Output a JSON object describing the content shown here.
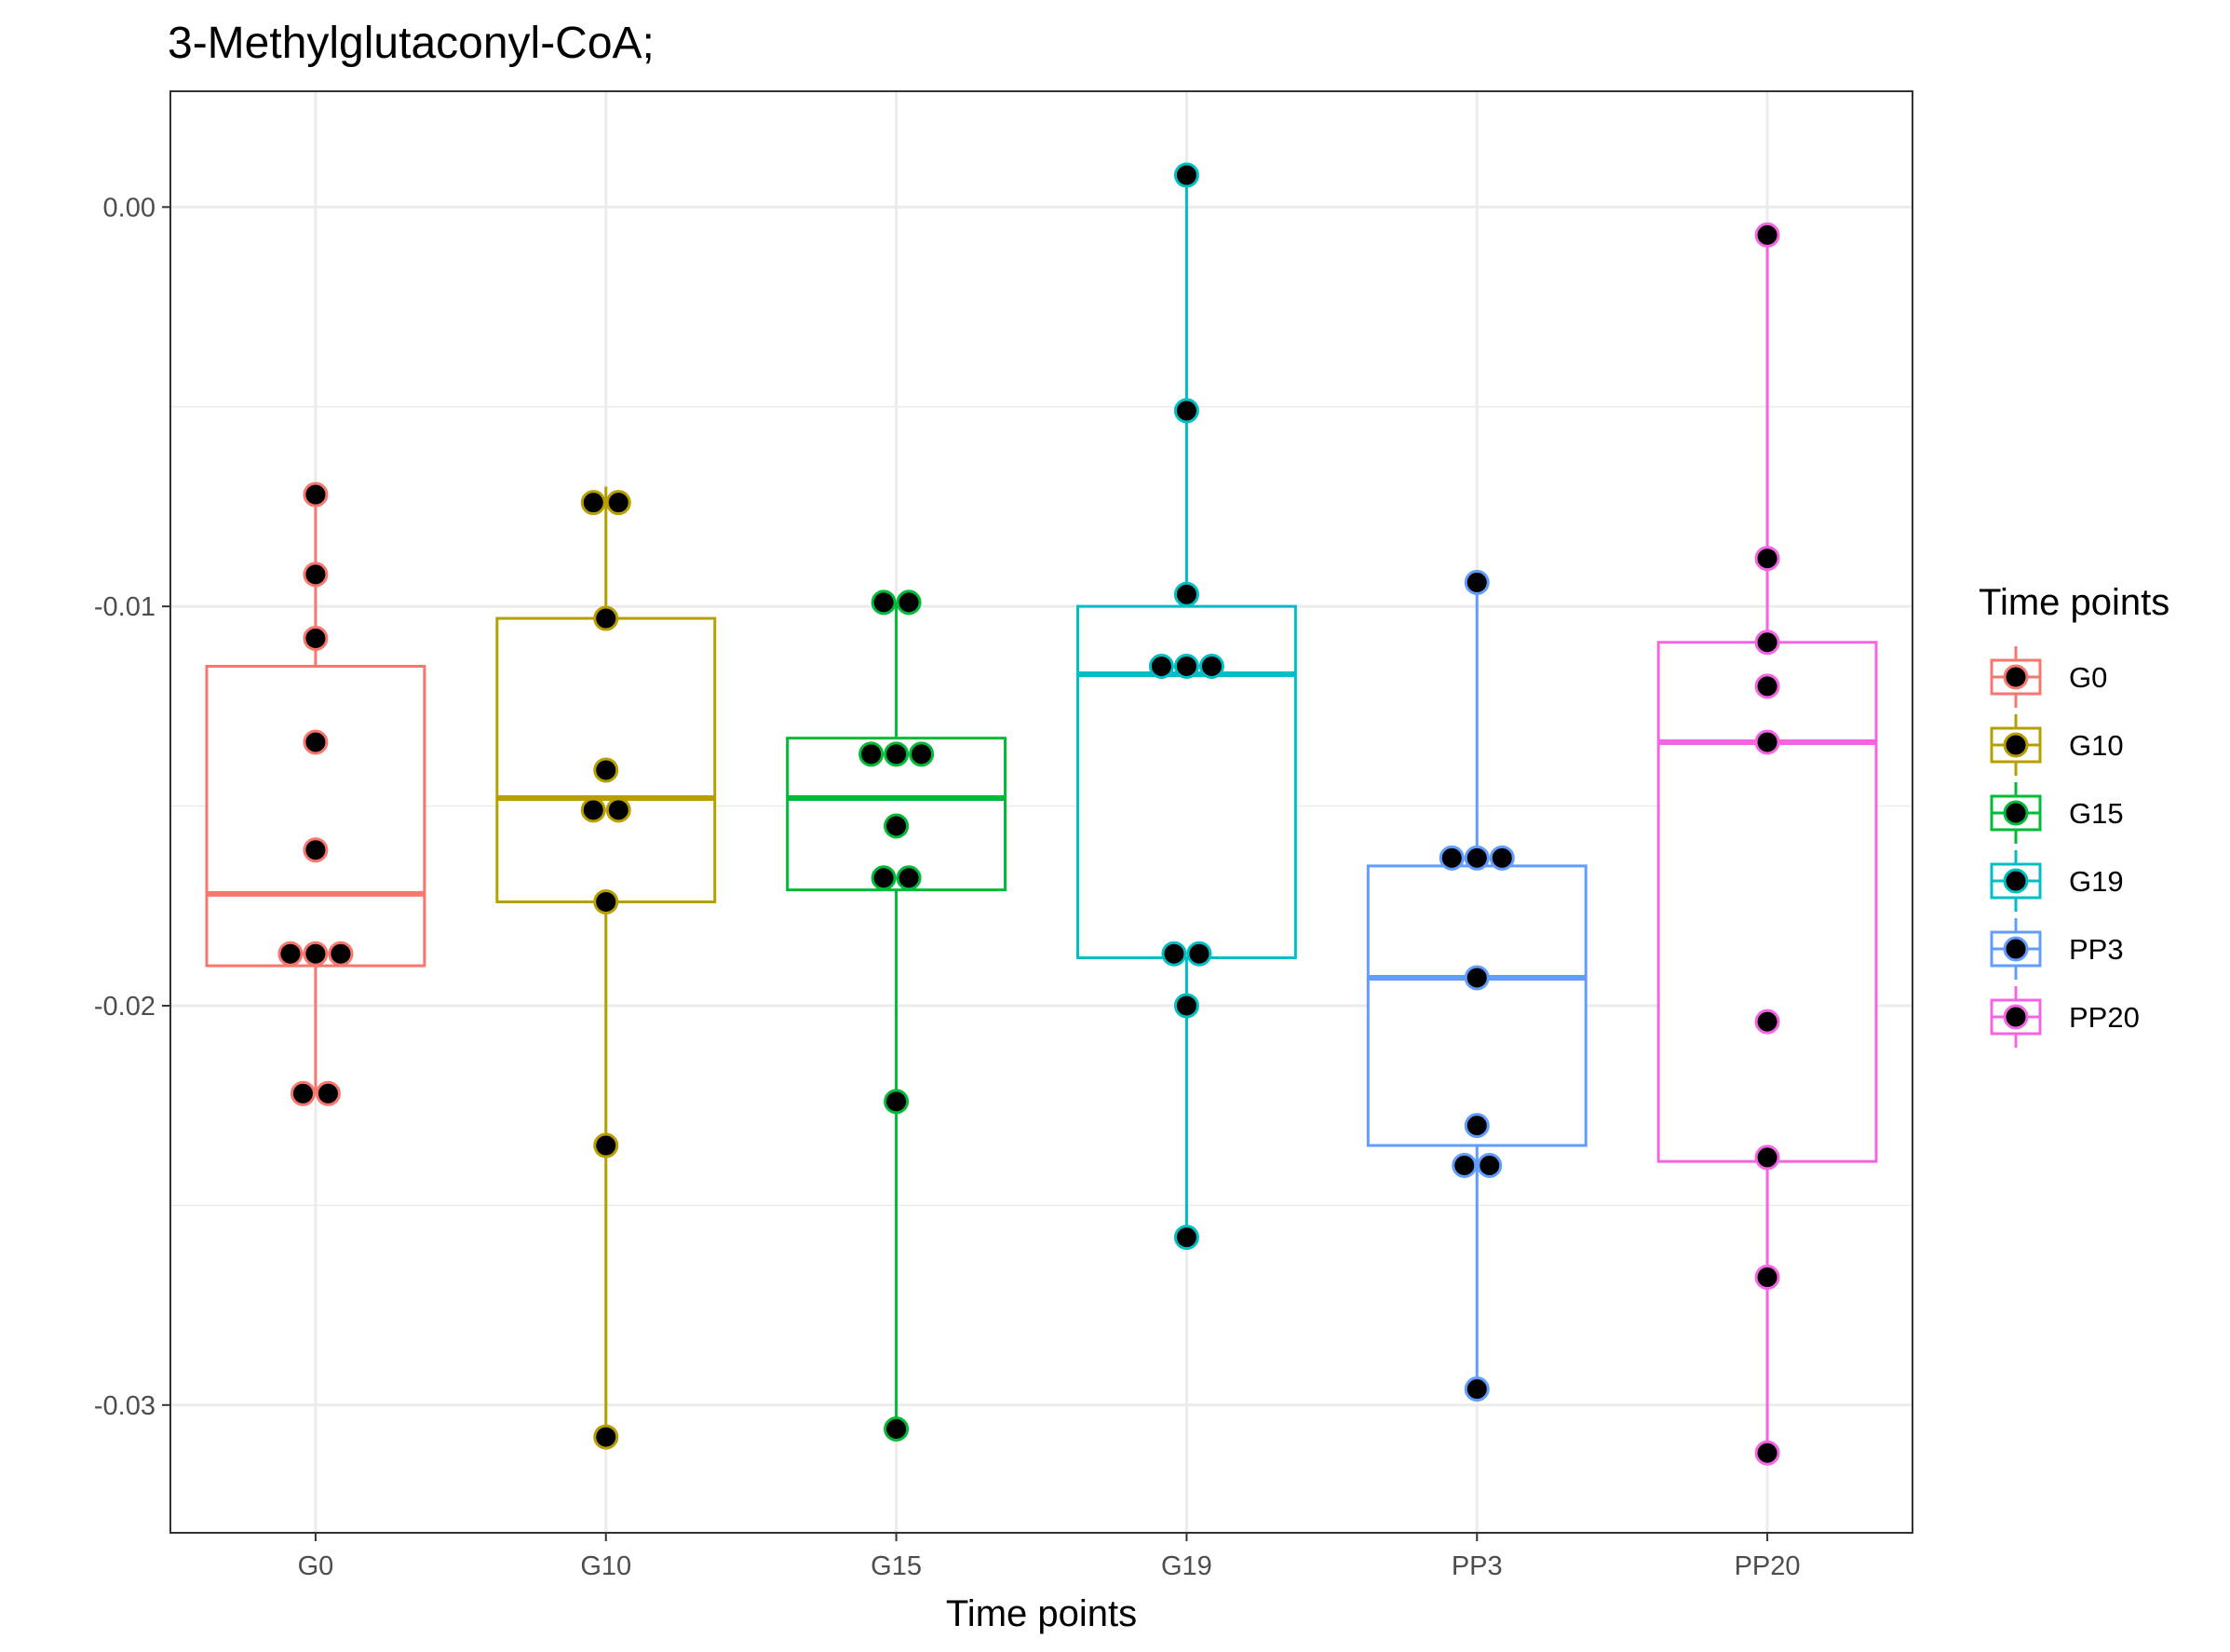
{
  "chart_data": {
    "type": "box",
    "title": "3-Methylglutaconyl-CoA;",
    "xlabel": "Time points",
    "ylabel": "",
    "ylim": [
      -0.0332,
      0.0029
    ],
    "yticks": [
      0.0,
      -0.01,
      -0.02,
      -0.03
    ],
    "ytick_labels": [
      "0.00",
      "-0.01",
      "-0.02",
      "-0.03"
    ],
    "grid": true,
    "legend": {
      "title": "Time points",
      "position": "right"
    },
    "categories": [
      "G0",
      "G10",
      "G15",
      "G19",
      "PP3",
      "PP20"
    ],
    "colors": [
      "#F8766D",
      "#B79F00",
      "#00BA38",
      "#00BFC4",
      "#619CFF",
      "#F564E3"
    ],
    "series": [
      {
        "name": "G0",
        "box": {
          "q1": -0.019,
          "median": -0.0172,
          "q3": -0.0115,
          "whisker_low": -0.0222,
          "whisker_high": -0.0072
        },
        "points": [
          -0.0072,
          -0.0092,
          -0.0108,
          -0.0134,
          -0.0161,
          -0.0187,
          -0.0187,
          -0.0187,
          -0.0222,
          -0.0222
        ]
      },
      {
        "name": "G10",
        "box": {
          "q1": -0.0174,
          "median": -0.0148,
          "q3": -0.0103,
          "whisker_low": -0.0308,
          "whisker_high": -0.007
        },
        "points": [
          -0.0074,
          -0.0074,
          -0.0103,
          -0.0141,
          -0.0151,
          -0.0151,
          -0.0174,
          -0.0235,
          -0.0308
        ]
      },
      {
        "name": "G15",
        "box": {
          "q1": -0.0171,
          "median": -0.0148,
          "q3": -0.0133,
          "whisker_low": -0.0306,
          "whisker_high": -0.0099
        },
        "points": [
          -0.0099,
          -0.0099,
          -0.0137,
          -0.0137,
          -0.0137,
          -0.0155,
          -0.0168,
          -0.0168,
          -0.0224,
          -0.0306
        ]
      },
      {
        "name": "G19",
        "box": {
          "q1": -0.0188,
          "median": -0.0117,
          "q3": -0.01,
          "whisker_low": -0.0258,
          "whisker_high": 0.0008
        },
        "points": [
          0.0008,
          -0.0051,
          -0.0097,
          -0.0115,
          -0.0115,
          -0.0115,
          -0.0187,
          -0.0187,
          -0.02,
          -0.0258
        ]
      },
      {
        "name": "PP3",
        "box": {
          "q1": -0.0235,
          "median": -0.0193,
          "q3": -0.0165,
          "whisker_low": -0.0296,
          "whisker_high": -0.0094
        },
        "points": [
          -0.0094,
          -0.0163,
          -0.0163,
          -0.0163,
          -0.0193,
          -0.023,
          -0.024,
          -0.024,
          -0.0296
        ]
      },
      {
        "name": "PP20",
        "box": {
          "q1": -0.0239,
          "median": -0.0134,
          "q3": -0.0109,
          "whisker_low": -0.0312,
          "whisker_high": -0.0007
        },
        "points": [
          -0.0007,
          -0.0088,
          -0.0109,
          -0.012,
          -0.0134,
          -0.0204,
          -0.0238,
          -0.0268,
          -0.0312
        ]
      }
    ]
  }
}
